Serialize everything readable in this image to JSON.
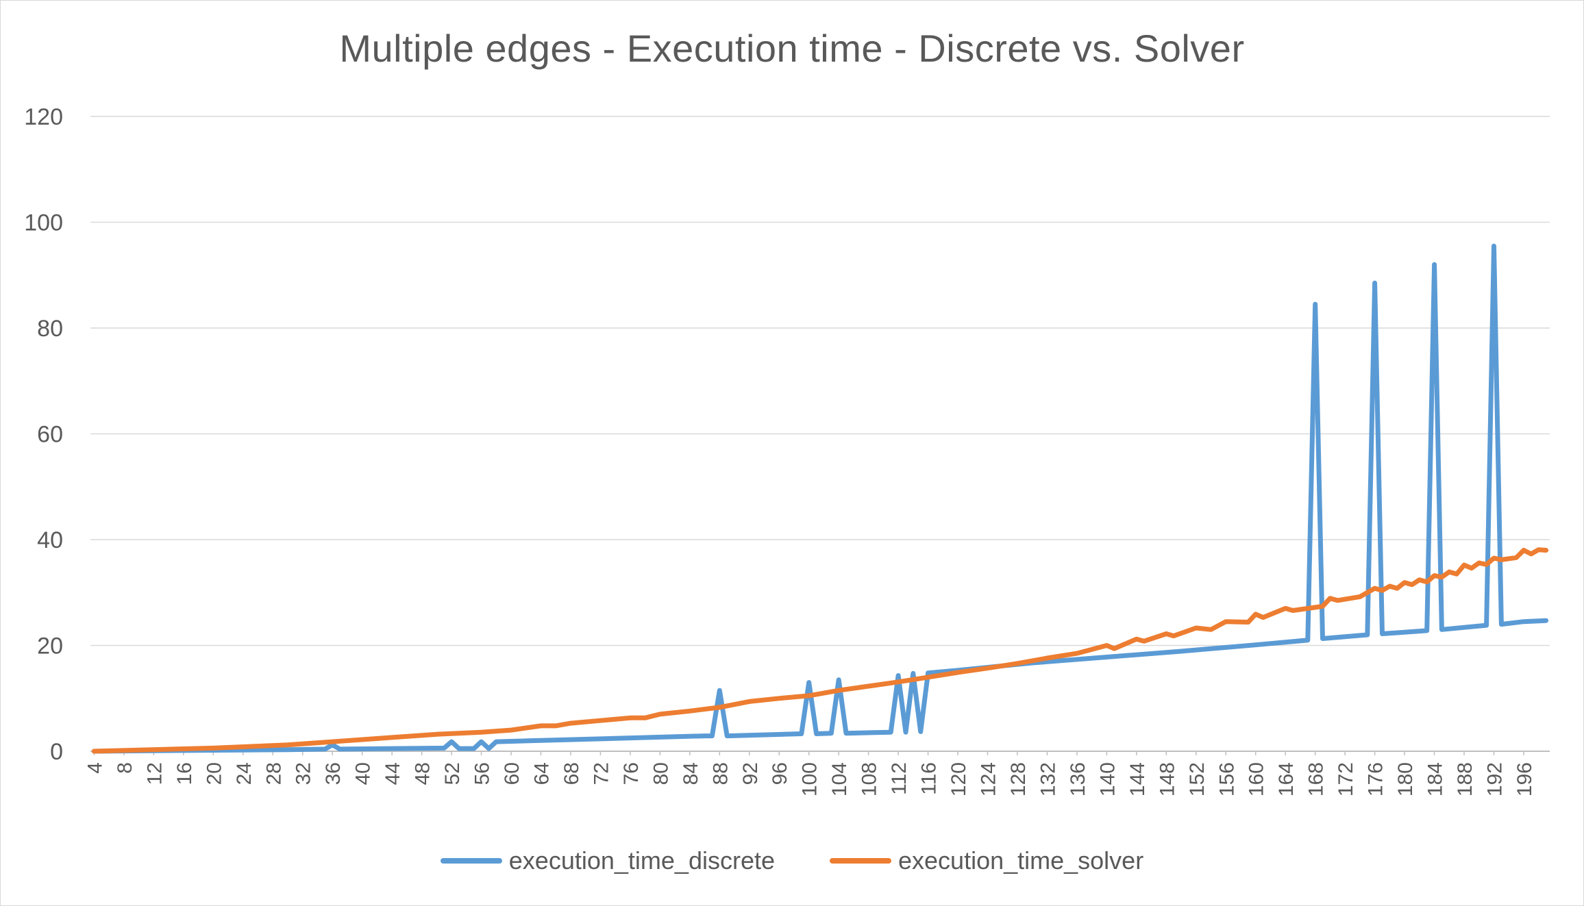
{
  "chart_data": {
    "type": "line",
    "title": "Multiple edges - Execution time - Discrete vs. Solver",
    "xlabel": "",
    "ylabel": "",
    "ylim": [
      0,
      120
    ],
    "yticks": [
      0,
      20,
      40,
      60,
      80,
      100,
      120
    ],
    "grid": true,
    "legend": "bottom",
    "x_tick_labels": [
      "4",
      "8",
      "12",
      "16",
      "20",
      "24",
      "28",
      "32",
      "36",
      "40",
      "44",
      "48",
      "52",
      "56",
      "60",
      "64",
      "68",
      "72",
      "76",
      "80",
      "84",
      "88",
      "92",
      "96",
      "100",
      "104",
      "108",
      "112",
      "116",
      "120",
      "124",
      "128",
      "132",
      "136",
      "140",
      "144",
      "148",
      "152",
      "156",
      "160",
      "164",
      "168",
      "172",
      "176",
      "180",
      "184",
      "188",
      "192",
      "196"
    ],
    "x_range": [
      4,
      199
    ],
    "series": [
      {
        "name": "execution_time_discrete",
        "color": "#5b9bd5",
        "points": [
          [
            4,
            0
          ],
          [
            30,
            0.3
          ],
          [
            35,
            0.4
          ],
          [
            36,
            1.2
          ],
          [
            37,
            0.4
          ],
          [
            51,
            0.6
          ],
          [
            52,
            1.8
          ],
          [
            53,
            0.5
          ],
          [
            55,
            0.5
          ],
          [
            56,
            1.8
          ],
          [
            57,
            0.5
          ],
          [
            58,
            1.8
          ],
          [
            86,
            2.9
          ],
          [
            87,
            2.9
          ],
          [
            88,
            11.5
          ],
          [
            89,
            2.9
          ],
          [
            99,
            3.3
          ],
          [
            100,
            13
          ],
          [
            101,
            3.3
          ],
          [
            103,
            3.4
          ],
          [
            104,
            13.5
          ],
          [
            105,
            3.4
          ],
          [
            111,
            3.6
          ],
          [
            112,
            14.3
          ],
          [
            113,
            3.6
          ],
          [
            114,
            14.7
          ],
          [
            115,
            3.7
          ],
          [
            116,
            14.8
          ],
          [
            120,
            15.3
          ],
          [
            130,
            16.7
          ],
          [
            140,
            17.8
          ],
          [
            150,
            18.9
          ],
          [
            160,
            20.1
          ],
          [
            167,
            21
          ],
          [
            168,
            84.5
          ],
          [
            169,
            21.3
          ],
          [
            175,
            22
          ],
          [
            176,
            88.5
          ],
          [
            177,
            22.2
          ],
          [
            183,
            22.8
          ],
          [
            184,
            92
          ],
          [
            185,
            23
          ],
          [
            191,
            23.8
          ],
          [
            192,
            95.5
          ],
          [
            193,
            24
          ],
          [
            196,
            24.5
          ],
          [
            199,
            24.7
          ]
        ]
      },
      {
        "name": "execution_time_solver",
        "color": "#ed7d31",
        "points": [
          [
            4,
            0
          ],
          [
            20,
            0.6
          ],
          [
            30,
            1.2
          ],
          [
            36,
            1.8
          ],
          [
            40,
            2.2
          ],
          [
            44,
            2.6
          ],
          [
            50,
            3.2
          ],
          [
            56,
            3.6
          ],
          [
            60,
            4
          ],
          [
            64,
            4.8
          ],
          [
            66,
            4.8
          ],
          [
            68,
            5.3
          ],
          [
            72,
            5.8
          ],
          [
            76,
            6.3
          ],
          [
            78,
            6.3
          ],
          [
            80,
            7
          ],
          [
            84,
            7.6
          ],
          [
            88,
            8.3
          ],
          [
            92,
            9.4
          ],
          [
            96,
            10
          ],
          [
            100,
            10.5
          ],
          [
            104,
            11.5
          ],
          [
            108,
            12.3
          ],
          [
            112,
            13.1
          ],
          [
            116,
            14
          ],
          [
            120,
            14.9
          ],
          [
            124,
            15.7
          ],
          [
            128,
            16.6
          ],
          [
            132,
            17.6
          ],
          [
            136,
            18.5
          ],
          [
            140,
            20
          ],
          [
            141,
            19.4
          ],
          [
            144,
            21.2
          ],
          [
            145,
            20.8
          ],
          [
            148,
            22.2
          ],
          [
            149,
            21.8
          ],
          [
            152,
            23.3
          ],
          [
            154,
            23.0
          ],
          [
            156,
            24.5
          ],
          [
            159,
            24.4
          ],
          [
            160,
            25.9
          ],
          [
            161,
            25.3
          ],
          [
            164,
            27
          ],
          [
            165,
            26.6
          ],
          [
            168,
            27.2
          ],
          [
            169,
            27.4
          ],
          [
            170,
            28.9
          ],
          [
            171,
            28.5
          ],
          [
            174,
            29.2
          ],
          [
            176,
            30.8
          ],
          [
            177,
            30.4
          ],
          [
            178,
            31.2
          ],
          [
            179,
            30.8
          ],
          [
            180,
            31.9
          ],
          [
            181,
            31.5
          ],
          [
            182,
            32.4
          ],
          [
            183,
            32.0
          ],
          [
            184,
            33.2
          ],
          [
            185,
            32.9
          ],
          [
            186,
            33.9
          ],
          [
            187,
            33.5
          ],
          [
            188,
            35.2
          ],
          [
            189,
            34.6
          ],
          [
            190,
            35.6
          ],
          [
            191,
            35.3
          ],
          [
            192,
            36.5
          ],
          [
            193,
            36.2
          ],
          [
            195,
            36.6
          ],
          [
            196,
            38
          ],
          [
            197,
            37.3
          ],
          [
            198,
            38.1
          ],
          [
            199,
            38
          ]
        ]
      }
    ]
  },
  "legend_items": [
    {
      "label": "execution_time_discrete",
      "color": "#5b9bd5"
    },
    {
      "label": "execution_time_solver",
      "color": "#ed7d31"
    }
  ]
}
